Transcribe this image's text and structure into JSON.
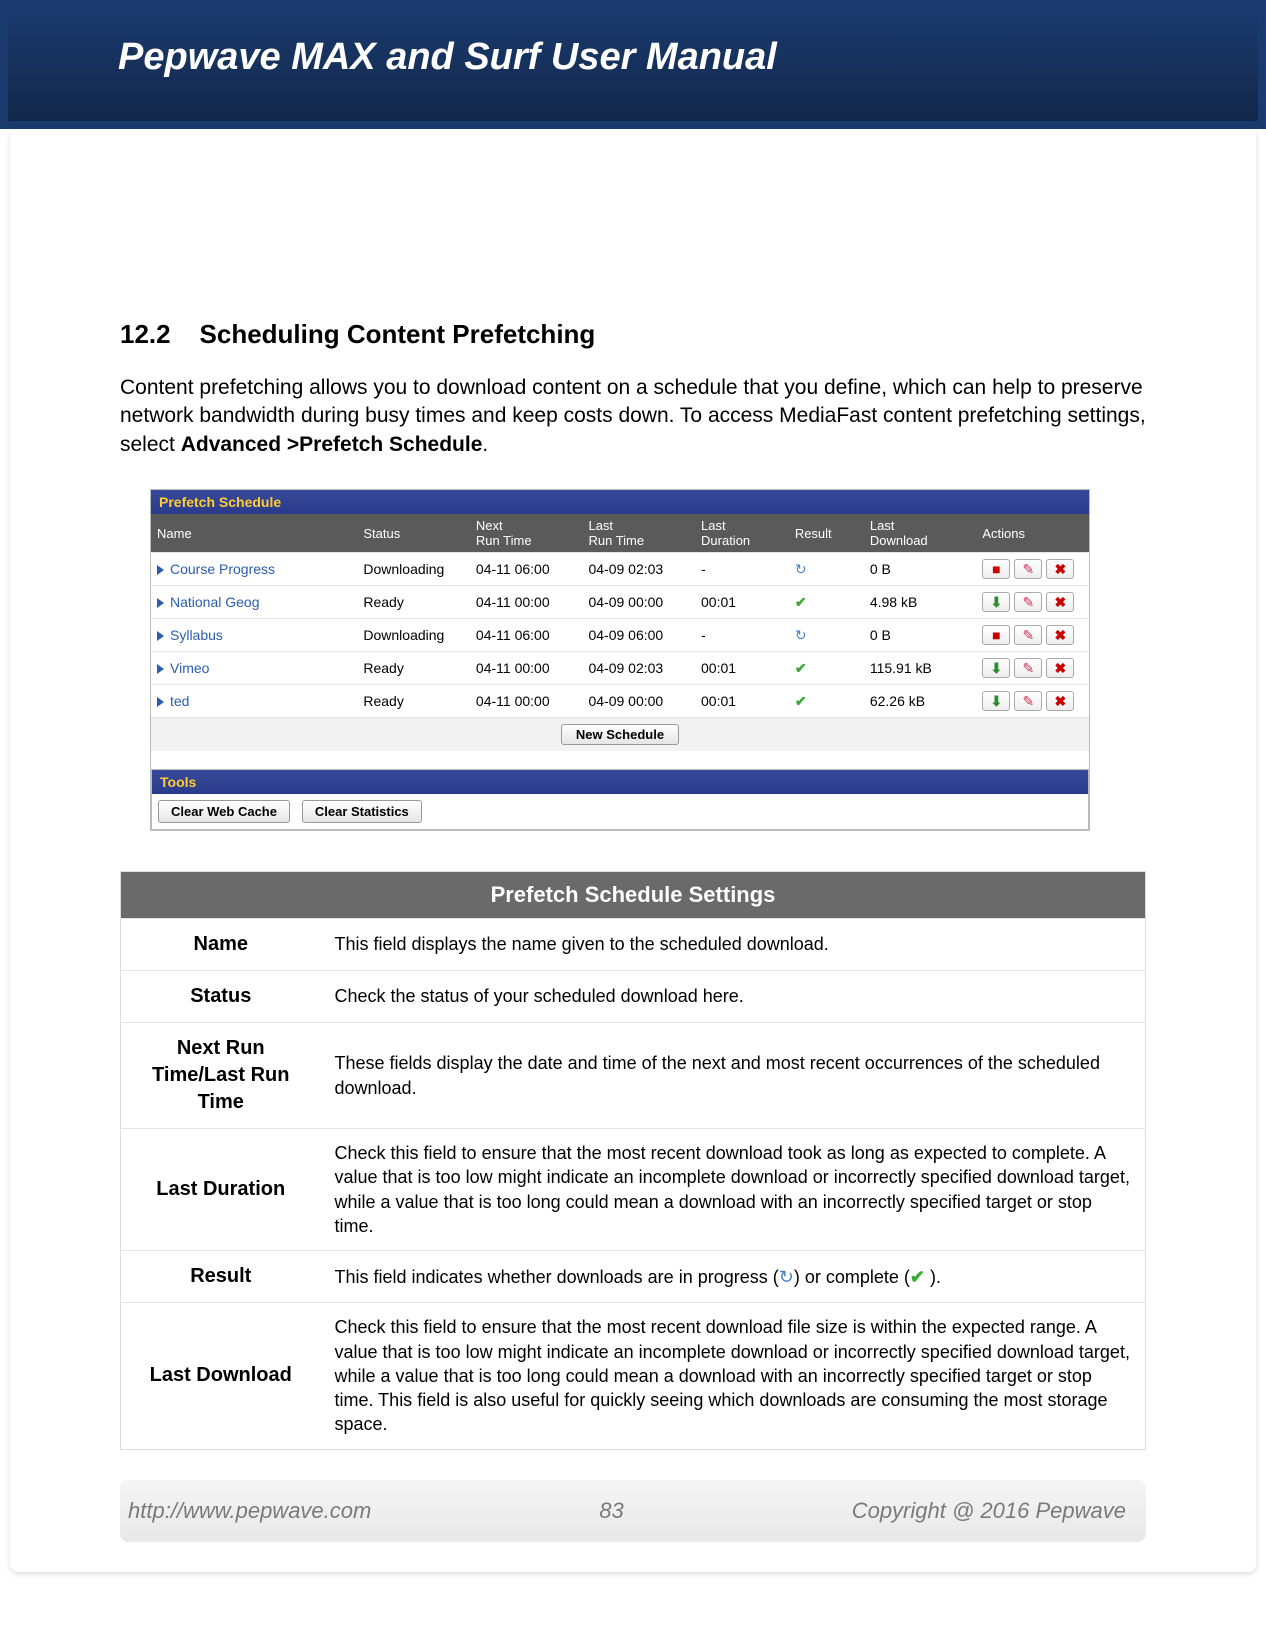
{
  "header": {
    "title": "Pepwave MAX and Surf User Manual"
  },
  "section": {
    "number": "12.2",
    "title": "Scheduling Content Prefetching",
    "intro_pre": "Content prefetching allows you to download content on a schedule that you define, which can help to preserve network bandwidth during busy times and keep costs down. To access MediaFast content prefetching settings, select ",
    "intro_bold": "Advanced >Prefetch Schedule",
    "intro_post": "."
  },
  "prefetch": {
    "title": "Prefetch Schedule",
    "columns": [
      "Name",
      "Status",
      "Next\nRun Time",
      "Last\nRun Time",
      "Last\nDuration",
      "Result",
      "Last\nDownload",
      "Actions"
    ],
    "rows": [
      {
        "name": "Course Progress",
        "status": "Downloading",
        "next": "04-11 06:00",
        "last": "04-09 02:03",
        "dur": "-",
        "result": "progress",
        "dl": "0 B",
        "act": "stop"
      },
      {
        "name": "National Geog",
        "status": "Ready",
        "next": "04-11 00:00",
        "last": "04-09 00:00",
        "dur": "00:01",
        "result": "ok",
        "dl": "4.98 kB",
        "act": "dl"
      },
      {
        "name": "Syllabus",
        "status": "Downloading",
        "next": "04-11 06:00",
        "last": "04-09 06:00",
        "dur": "-",
        "result": "progress",
        "dl": "0 B",
        "act": "stop"
      },
      {
        "name": "Vimeo",
        "status": "Ready",
        "next": "04-11 00:00",
        "last": "04-09 02:03",
        "dur": "00:01",
        "result": "ok",
        "dl": "115.91 kB",
        "act": "dl"
      },
      {
        "name": "ted",
        "status": "Ready",
        "next": "04-11 00:00",
        "last": "04-09 00:00",
        "dur": "00:01",
        "result": "ok",
        "dl": "62.26 kB",
        "act": "dl"
      }
    ],
    "new_schedule": "New Schedule",
    "tools_title": "Tools",
    "clear_web": "Clear Web Cache",
    "clear_stats": "Clear Statistics",
    "col_widths": [
      "22%",
      "12%",
      "12%",
      "12%",
      "10%",
      "8%",
      "12%",
      "12%"
    ]
  },
  "settings": {
    "header": "Prefetch Schedule Settings",
    "rows": [
      {
        "k": "Name",
        "v": "This field displays the name given to the scheduled download."
      },
      {
        "k": "Status",
        "v": "Check the status of your scheduled download here."
      },
      {
        "k": "Next Run Time/Last Run Time",
        "v": "These fields display the date and time of the next and most recent occurrences of the scheduled download."
      },
      {
        "k": "Last Duration",
        "v": "Check this field to ensure that the most recent download took as long as expected to complete. A value that is too low might indicate an incomplete download or incorrectly specified download target, while a value that is too long could mean a download with an incorrectly specified target or stop time."
      },
      {
        "k": "Result",
        "v": "__RESULT_ROW__"
      },
      {
        "k": "Last Download",
        "v": "Check this field to ensure that the most recent download file size is within the expected range. A value that is too low might indicate an incomplete download or incorrectly specified download target, while a value that is too long could mean a download with an incorrectly specified target or stop time. This field is also useful for quickly seeing which downloads are consuming the most storage space."
      }
    ],
    "result_text_pre": "This field indicates whether downloads are in progress (",
    "result_text_mid": ") or complete (",
    "result_text_post": " )."
  },
  "footer": {
    "url": "http://www.pepwave.com",
    "page": "83",
    "copyright": "Copyright @ 2016 Pepwave"
  },
  "colors": {
    "header_bg": "#1a3a6e",
    "titlebar_text": "#ffcc33",
    "link_blue": "#2a5db0",
    "check_green": "#3aaa35",
    "action_red": "#cc0000"
  }
}
